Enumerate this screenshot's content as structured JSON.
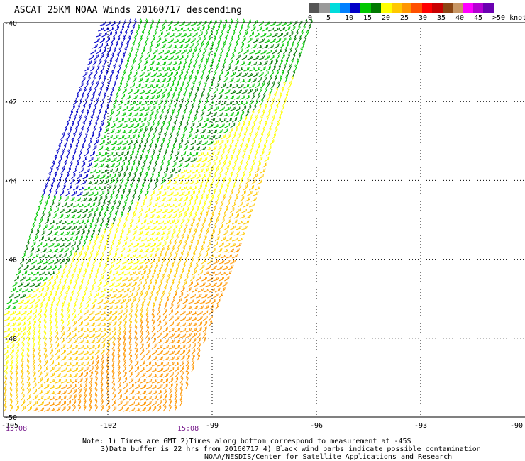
{
  "title": "ASCAT 25KM NOAA Winds 20160717 descending",
  "colorbar": {
    "colors": [
      "#555555",
      "#9a9a9a",
      "#00dcdc",
      "#0080ff",
      "#0000c8",
      "#00c800",
      "#007800",
      "#ffff00",
      "#ffc800",
      "#ff9600",
      "#ff5000",
      "#ff0000",
      "#c80000",
      "#8b4513",
      "#c89664",
      "#ff00ff",
      "#b400d2",
      "#6a00b0"
    ],
    "labels": [
      "0",
      "5",
      "10",
      "15",
      "20",
      "25",
      "30",
      "35",
      "40",
      "45",
      ">50 knots"
    ]
  },
  "map": {
    "lon_range": [
      -105,
      -90
    ],
    "lat_range": [
      -50,
      -40
    ],
    "lon_ticks": [
      "-105",
      "-102",
      "-99",
      "-96",
      "-93",
      "-90"
    ],
    "lat_ticks": [
      "-40",
      "-42",
      "-44",
      "-46",
      "-48",
      "-50"
    ],
    "grid_lons": [
      -102,
      -99,
      -96,
      -93
    ],
    "grid_lats": [
      -42,
      -44,
      -46,
      -48
    ],
    "swath_lon_at_bottom": [
      -106.0,
      -100.0
    ],
    "swath_lon_at_top": [
      -102.2,
      -96.0
    ]
  },
  "times": {
    "left": "15:08",
    "right": "15:08"
  },
  "notes": [
    "Note: 1) Times are GMT 2)Times along bottom correspond to measurement at -45S",
    "3)Data buffer is 22 hrs from 20160717 4) Black wind barbs indicate possible contamination",
    "NOAA/NESDIS/Center for Satellite Applications and Research"
  ]
}
